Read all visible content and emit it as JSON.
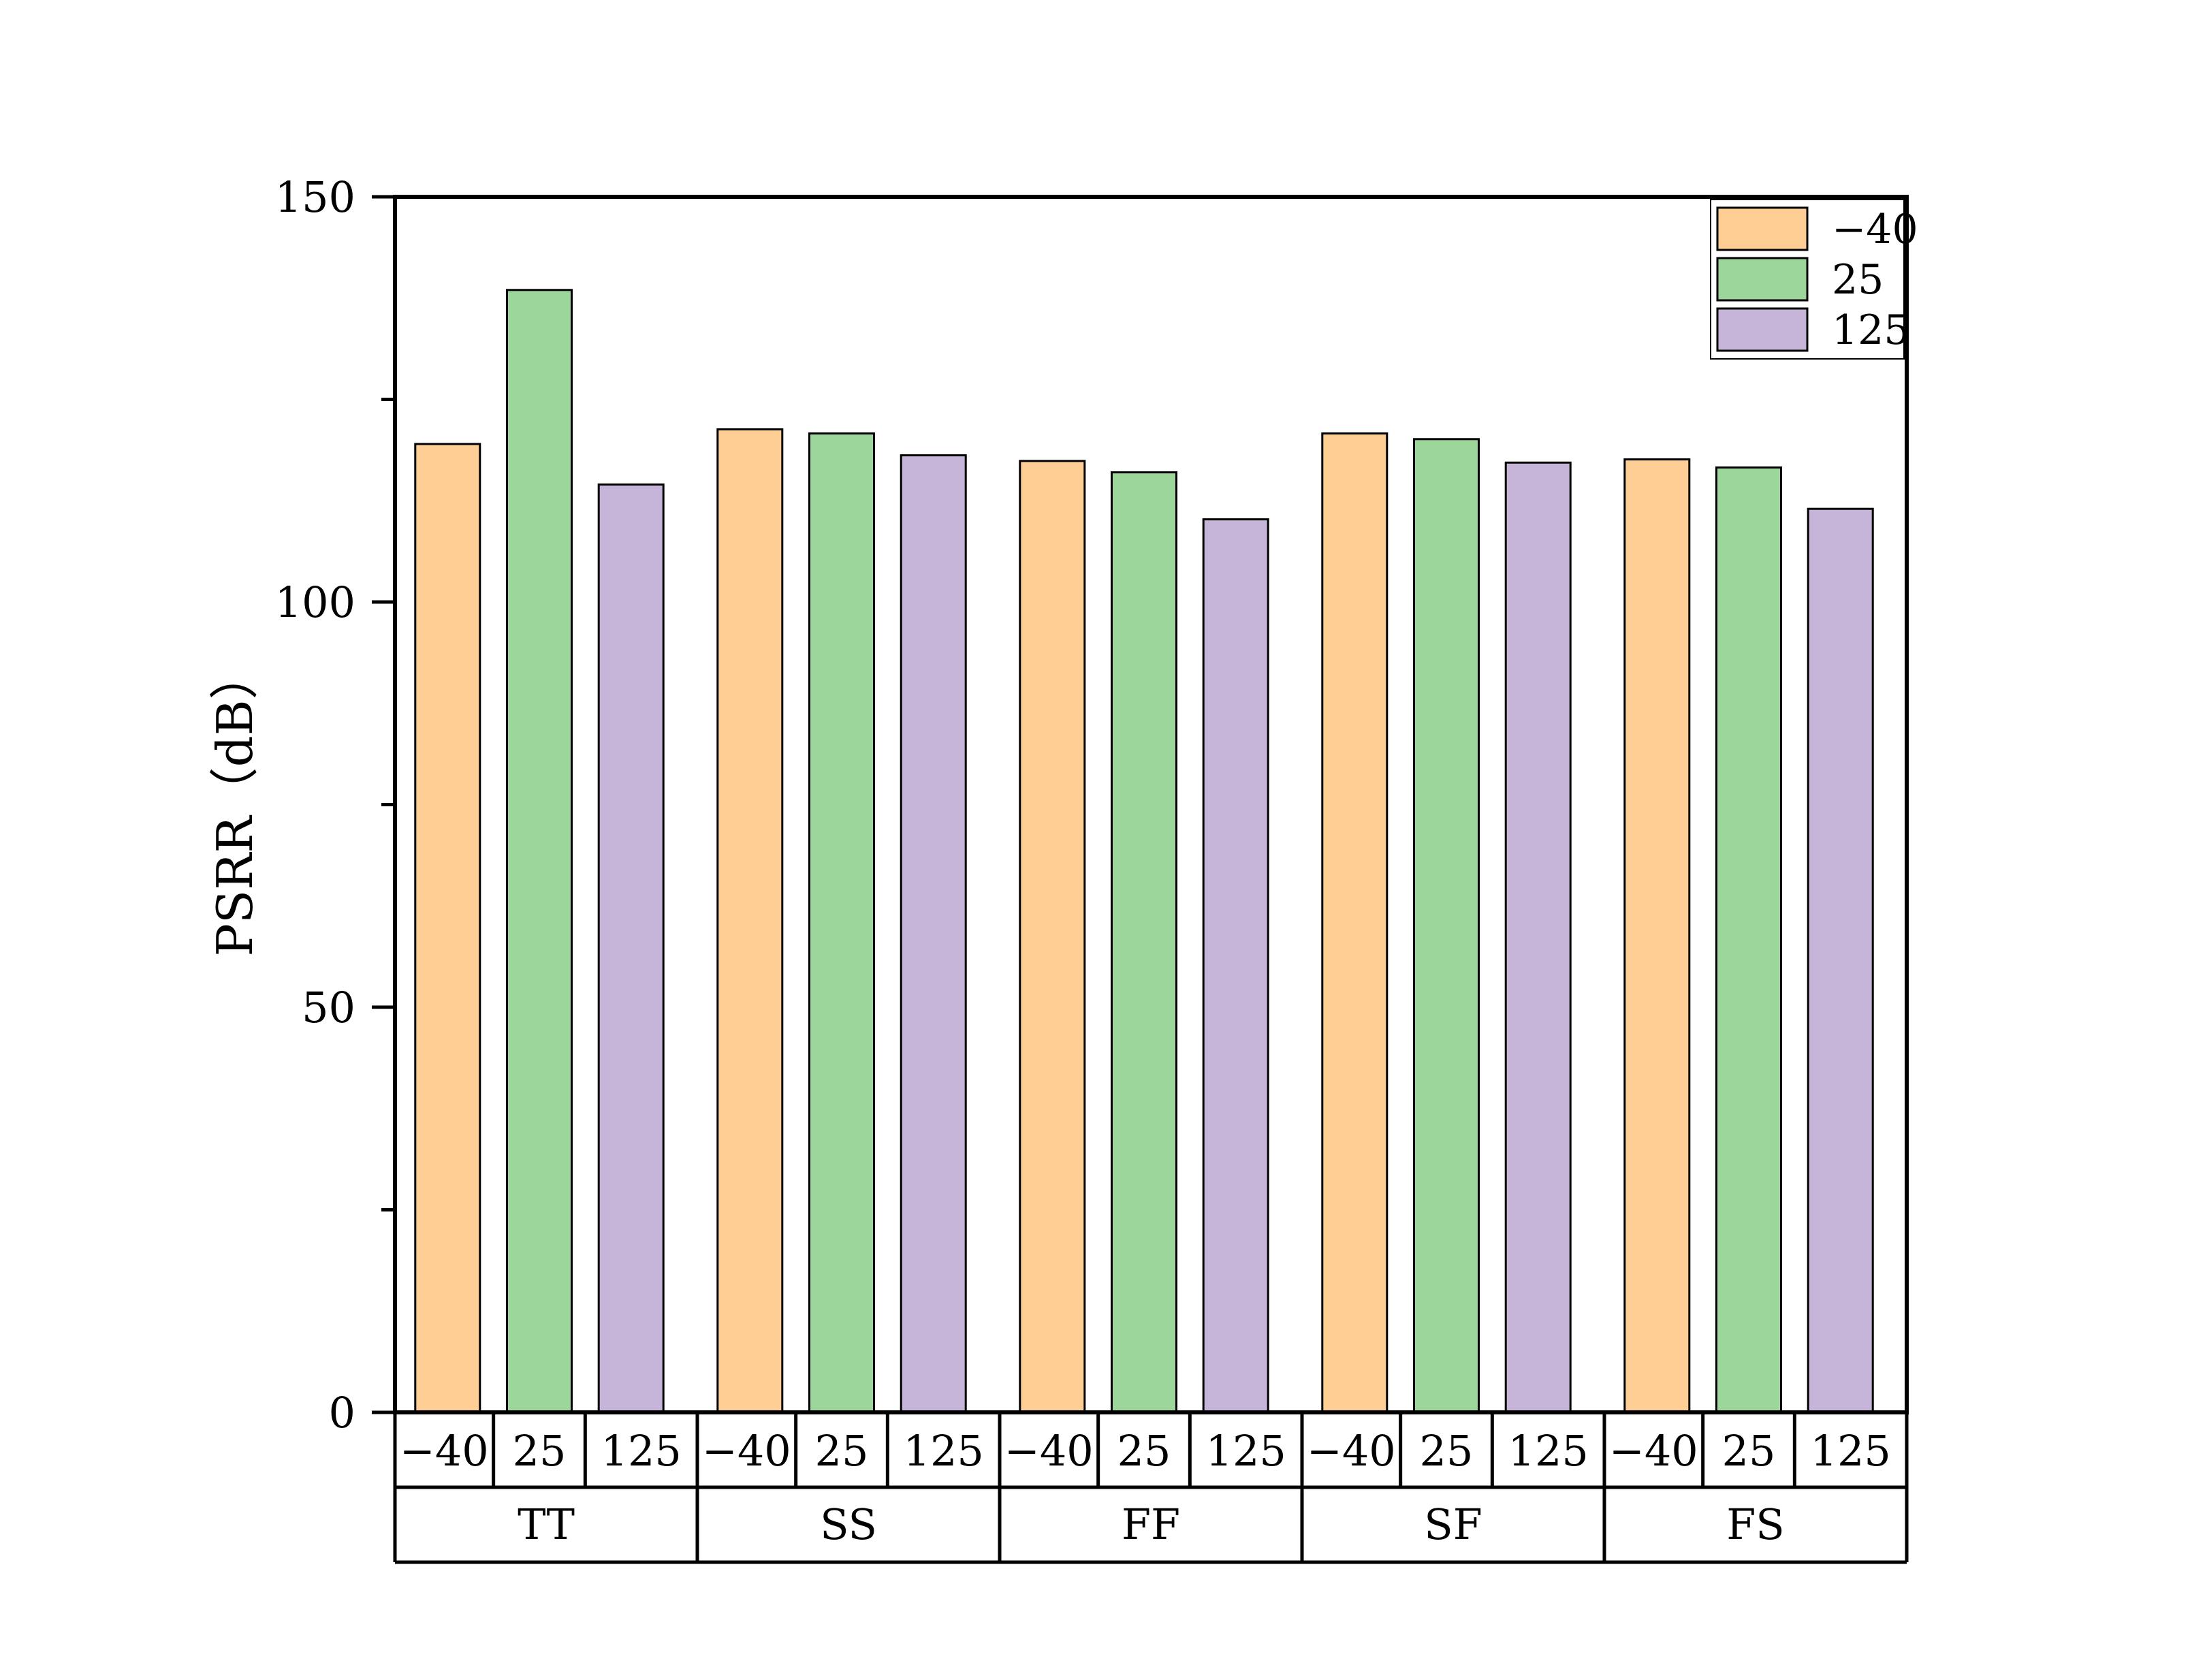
{
  "colors": {
    "series_fill": [
      "#FECE94",
      "#9DD69B",
      "#C6B5D8"
    ],
    "stroke": "#000000",
    "background": "#FFFFFF"
  },
  "chart_data": {
    "type": "bar",
    "ylabel": "PSRR（dB）",
    "ylim": [
      0,
      150
    ],
    "yticks": [
      "0",
      "50",
      "100",
      "150"
    ],
    "y_minor_ticks": [
      25,
      75,
      125
    ],
    "grid": false,
    "legend_position": "top-right",
    "sub_categories": [
      "−40",
      "25",
      "125"
    ],
    "groups": [
      "TT",
      "SS",
      "FF",
      "SF",
      "FS"
    ],
    "series": [
      {
        "name": "−40",
        "values": [
          119.5,
          121.3,
          117.4,
          120.8,
          117.6
        ]
      },
      {
        "name": "25",
        "values": [
          138.5,
          120.8,
          116.0,
          120.1,
          116.6
        ]
      },
      {
        "name": "125",
        "values": [
          114.5,
          118.1,
          110.2,
          117.2,
          111.5
        ]
      }
    ]
  }
}
